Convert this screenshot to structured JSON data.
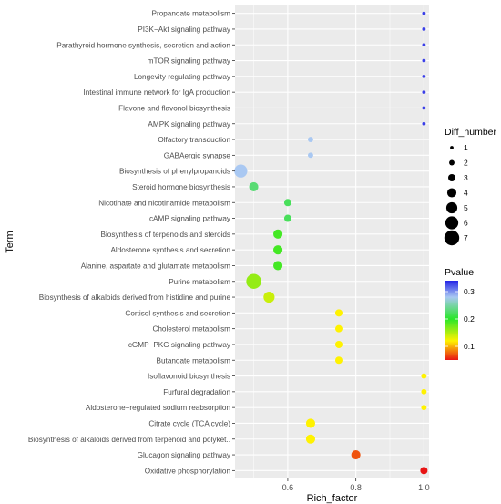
{
  "chart_data": {
    "type": "scatter",
    "xlabel": "Rich_factor",
    "ylabel": "Term",
    "xlim": [
      0.445,
      1.015
    ],
    "x_ticks": [
      0.6,
      0.8,
      1.0
    ],
    "x_tick_labels": [
      "0.6",
      "0.8",
      "1.0"
    ],
    "grid": true,
    "terms": [
      "Propanoate metabolism",
      "PI3K−Akt signaling pathway",
      "Parathyroid hormone synthesis, secretion and action",
      "mTOR signaling pathway",
      "Longevity regulating pathway",
      "Intestinal immune network for IgA production",
      "Flavone and flavonol biosynthesis",
      "AMPK signaling pathway",
      "Olfactory transduction",
      "GABAergic synapse",
      "Biosynthesis of phenylpropanoids",
      "Steroid hormone biosynthesis",
      "Nicotinate and nicotinamide metabolism",
      "cAMP signaling pathway",
      "Biosynthesis of terpenoids and steroids",
      "Aldosterone synthesis and secretion",
      "Alanine, aspartate and glutamate metabolism",
      "Purine metabolism",
      "Biosynthesis of alkaloids derived from histidine and purine",
      "Cortisol synthesis and secretion",
      "Cholesterol metabolism",
      "cGMP−PKG signaling pathway",
      "Butanoate metabolism",
      "Isoflavonoid biosynthesis",
      "Furfural degradation",
      "Aldosterone−regulated sodium reabsorption",
      "Citrate cycle (TCA cycle)",
      "Biosynthesis of alkaloids derived from terpenoid and polyket..",
      "Glucagon signaling pathway",
      "Oxidative phosphorylation"
    ],
    "points": [
      {
        "rich_factor": 1.0,
        "diff_number": 1,
        "pvalue": 0.33
      },
      {
        "rich_factor": 1.0,
        "diff_number": 1,
        "pvalue": 0.33
      },
      {
        "rich_factor": 1.0,
        "diff_number": 1,
        "pvalue": 0.33
      },
      {
        "rich_factor": 1.0,
        "diff_number": 1,
        "pvalue": 0.33
      },
      {
        "rich_factor": 1.0,
        "diff_number": 1,
        "pvalue": 0.33
      },
      {
        "rich_factor": 1.0,
        "diff_number": 1,
        "pvalue": 0.33
      },
      {
        "rich_factor": 1.0,
        "diff_number": 1,
        "pvalue": 0.33
      },
      {
        "rich_factor": 1.0,
        "diff_number": 1,
        "pvalue": 0.33
      },
      {
        "rich_factor": 0.667,
        "diff_number": 2,
        "pvalue": 0.28
      },
      {
        "rich_factor": 0.667,
        "diff_number": 2,
        "pvalue": 0.28
      },
      {
        "rich_factor": 0.462,
        "diff_number": 6,
        "pvalue": 0.28
      },
      {
        "rich_factor": 0.5,
        "diff_number": 4,
        "pvalue": 0.23
      },
      {
        "rich_factor": 0.6,
        "diff_number": 3,
        "pvalue": 0.22
      },
      {
        "rich_factor": 0.6,
        "diff_number": 3,
        "pvalue": 0.22
      },
      {
        "rich_factor": 0.571,
        "diff_number": 4,
        "pvalue": 0.19
      },
      {
        "rich_factor": 0.571,
        "diff_number": 4,
        "pvalue": 0.19
      },
      {
        "rich_factor": 0.571,
        "diff_number": 4,
        "pvalue": 0.19
      },
      {
        "rich_factor": 0.5,
        "diff_number": 7,
        "pvalue": 0.16
      },
      {
        "rich_factor": 0.545,
        "diff_number": 5,
        "pvalue": 0.14
      },
      {
        "rich_factor": 0.75,
        "diff_number": 3,
        "pvalue": 0.12
      },
      {
        "rich_factor": 0.75,
        "diff_number": 3,
        "pvalue": 0.12
      },
      {
        "rich_factor": 0.75,
        "diff_number": 3,
        "pvalue": 0.12
      },
      {
        "rich_factor": 0.75,
        "diff_number": 3,
        "pvalue": 0.12
      },
      {
        "rich_factor": 1.0,
        "diff_number": 2,
        "pvalue": 0.12
      },
      {
        "rich_factor": 1.0,
        "diff_number": 2,
        "pvalue": 0.12
      },
      {
        "rich_factor": 1.0,
        "diff_number": 2,
        "pvalue": 0.12
      },
      {
        "rich_factor": 0.667,
        "diff_number": 4,
        "pvalue": 0.12
      },
      {
        "rich_factor": 0.667,
        "diff_number": 4,
        "pvalue": 0.12
      },
      {
        "rich_factor": 0.8,
        "diff_number": 4,
        "pvalue": 0.07
      },
      {
        "rich_factor": 1.0,
        "diff_number": 3,
        "pvalue": 0.05
      }
    ],
    "size_legend": {
      "title": "Diff_number",
      "values": [
        1,
        2,
        3,
        4,
        5,
        6,
        7
      ],
      "labels": [
        "1",
        "2",
        "3",
        "4",
        "5",
        "6",
        "7"
      ]
    },
    "color_legend": {
      "title": "Pvalue",
      "range": [
        0.05,
        0.34
      ],
      "ticks": [
        0.1,
        0.2,
        0.3
      ],
      "tick_labels": [
        "0.1",
        "0.2",
        "0.3"
      ],
      "stops": [
        {
          "value": 0.05,
          "color": "#e81414"
        },
        {
          "value": 0.12,
          "color": "#fff200"
        },
        {
          "value": 0.2,
          "color": "#29e629"
        },
        {
          "value": 0.28,
          "color": "#a9c8f2"
        },
        {
          "value": 0.34,
          "color": "#2424e6"
        }
      ]
    },
    "panel_background": "#ebebeb",
    "grid_color": "#ffffff"
  }
}
